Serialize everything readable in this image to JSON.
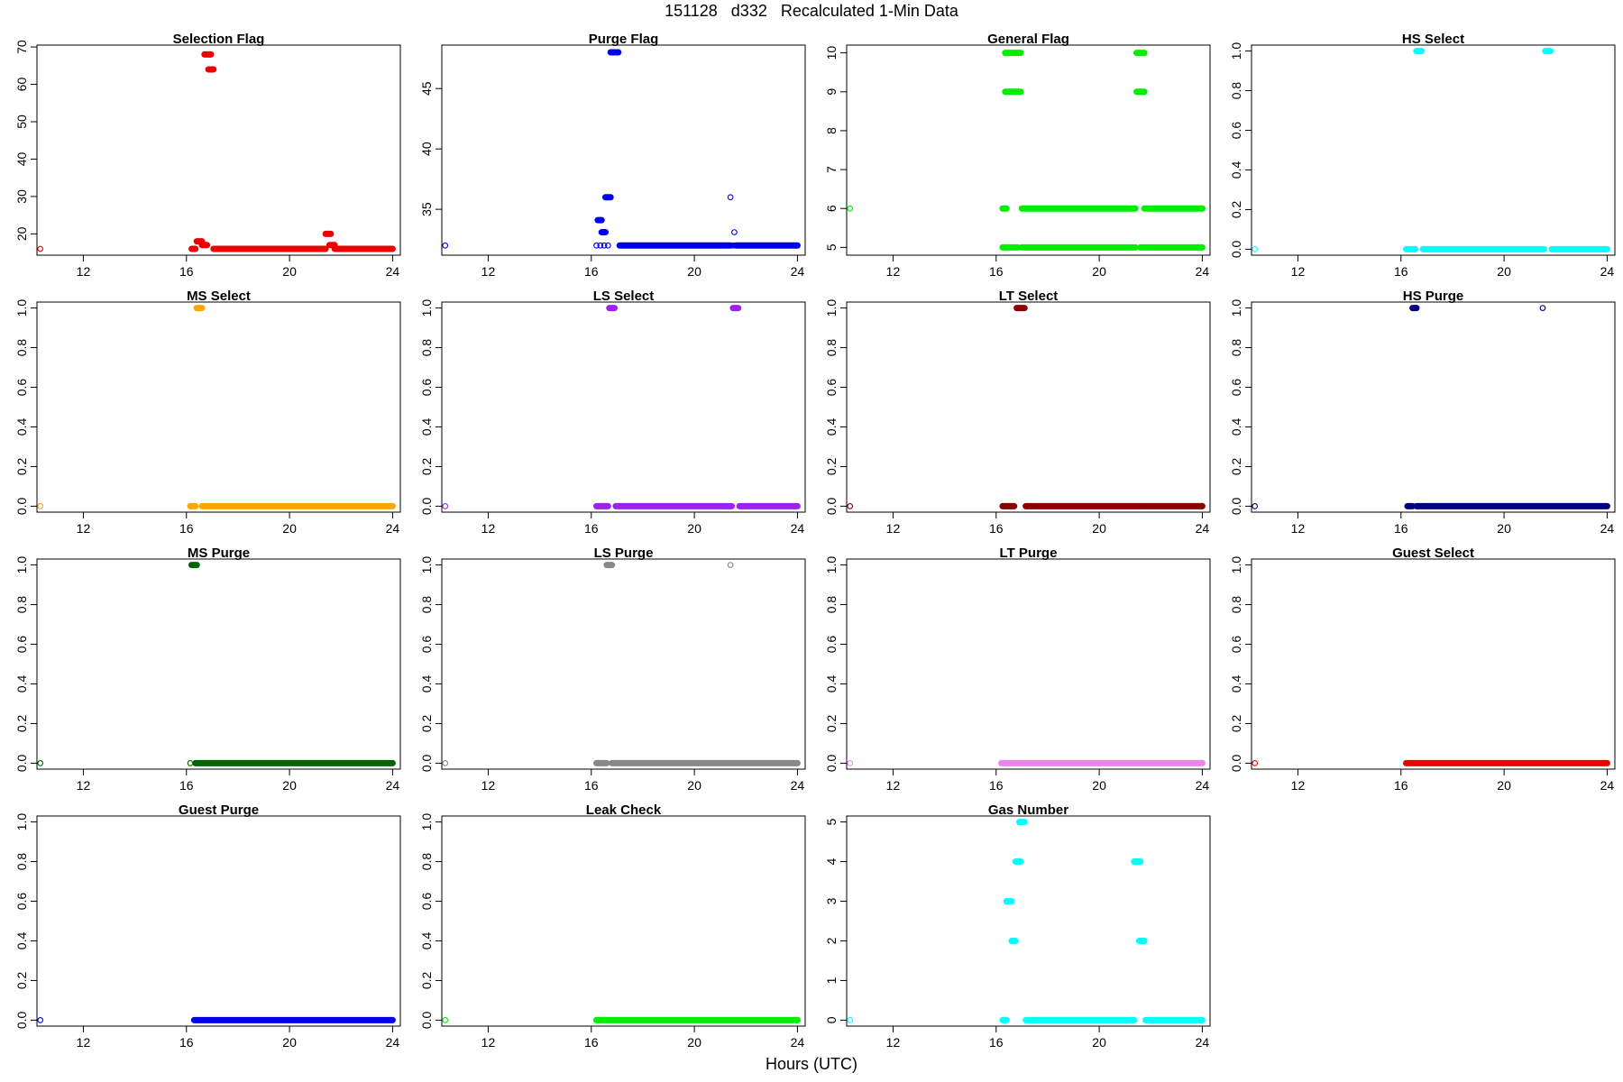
{
  "figure": {
    "title": "151128   d332   Recalculated 1-Min Data",
    "xlabel": "Hours (UTC)"
  },
  "chart_data": [
    {
      "type": "scatter",
      "title": "Selection Flag",
      "color": "#ee0000",
      "xlim": [
        10.2,
        24.3
      ],
      "ylim": [
        14.3,
        70.5
      ],
      "xticks": [
        12,
        16,
        20,
        24
      ],
      "yticks": [
        20,
        30,
        40,
        50,
        60,
        70
      ],
      "ytick_labels": [
        "20",
        "30",
        "40",
        "50",
        "60",
        "70"
      ],
      "points": [
        [
          10.33,
          16
        ]
      ],
      "segments": [
        {
          "x": [
            16.2,
            16.35
          ],
          "y": 16
        },
        {
          "x": [
            16.4,
            16.6
          ],
          "y": 18
        },
        {
          "x": [
            16.6,
            16.8
          ],
          "y": 17
        },
        {
          "x": [
            16.7,
            16.95
          ],
          "y": 68
        },
        {
          "x": [
            16.85,
            17.05
          ],
          "y": 64
        },
        {
          "x": [
            17.05,
            21.4
          ],
          "y": 16
        },
        {
          "x": [
            21.4,
            21.6
          ],
          "y": 20
        },
        {
          "x": [
            21.55,
            21.75
          ],
          "y": 17
        },
        {
          "x": [
            21.75,
            24.0
          ],
          "y": 16
        }
      ]
    },
    {
      "type": "scatter",
      "title": "Purge Flag",
      "color": "#0000ee",
      "xlim": [
        10.2,
        24.3
      ],
      "ylim": [
        31.2,
        48.6
      ],
      "xticks": [
        12,
        16,
        20,
        24
      ],
      "yticks": [
        35,
        40,
        45
      ],
      "ytick_labels": [
        "35",
        "40",
        "45"
      ],
      "points": [
        [
          10.33,
          32
        ],
        [
          16.2,
          32
        ],
        [
          16.35,
          32
        ],
        [
          16.5,
          32
        ],
        [
          16.65,
          32
        ],
        [
          21.4,
          36
        ],
        [
          21.55,
          33.1
        ],
        [
          21.5,
          32
        ]
      ],
      "segments": [
        {
          "x": [
            16.25,
            16.4
          ],
          "y": 34.1
        },
        {
          "x": [
            16.4,
            16.55
          ],
          "y": 33.1
        },
        {
          "x": [
            16.55,
            16.75
          ],
          "y": 36
        },
        {
          "x": [
            16.75,
            17.05
          ],
          "y": 48
        },
        {
          "x": [
            17.1,
            21.4
          ],
          "y": 32
        },
        {
          "x": [
            21.6,
            24.0
          ],
          "y": 32
        }
      ]
    },
    {
      "type": "scatter",
      "title": "General Flag",
      "color": "#00ee00",
      "xlim": [
        10.2,
        24.3
      ],
      "ylim": [
        4.8,
        10.2
      ],
      "xticks": [
        12,
        16,
        20,
        24
      ],
      "yticks": [
        5,
        6,
        7,
        8,
        9,
        10
      ],
      "ytick_labels": [
        "5",
        "6",
        "7",
        "8",
        "9",
        "10"
      ],
      "points": [
        [
          10.33,
          6
        ]
      ],
      "segments": [
        {
          "x": [
            16.25,
            16.4
          ],
          "y": 6
        },
        {
          "x": [
            16.25,
            16.4
          ],
          "y": 5
        },
        {
          "x": [
            16.35,
            16.95
          ],
          "y": 10
        },
        {
          "x": [
            16.35,
            16.95
          ],
          "y": 9
        },
        {
          "x": [
            16.45,
            16.85
          ],
          "y": 5
        },
        {
          "x": [
            17.0,
            21.4
          ],
          "y": 5
        },
        {
          "x": [
            17.0,
            21.4
          ],
          "y": 6
        },
        {
          "x": [
            21.45,
            21.75
          ],
          "y": 10
        },
        {
          "x": [
            21.45,
            21.75
          ],
          "y": 9
        },
        {
          "x": [
            21.6,
            24.0
          ],
          "y": 5
        },
        {
          "x": [
            21.75,
            24.0
          ],
          "y": 6
        }
      ]
    },
    {
      "type": "scatter",
      "title": "HS Select",
      "color": "#00ffff",
      "xlim": [
        10.2,
        24.3
      ],
      "ylim": [
        -0.03,
        1.03
      ],
      "xticks": [
        12,
        16,
        20,
        24
      ],
      "yticks": [
        0,
        0.2,
        0.4,
        0.6,
        0.8,
        1.0
      ],
      "ytick_labels": [
        "0.0",
        "0.2",
        "0.4",
        "0.6",
        "0.8",
        "1.0"
      ],
      "points": [
        [
          10.33,
          0
        ]
      ],
      "segments": [
        {
          "x": [
            16.6,
            16.8
          ],
          "y": 1
        },
        {
          "x": [
            21.6,
            21.8
          ],
          "y": 1
        },
        {
          "x": [
            16.2,
            16.55
          ],
          "y": 0
        },
        {
          "x": [
            16.85,
            21.55
          ],
          "y": 0
        },
        {
          "x": [
            21.85,
            24.0
          ],
          "y": 0
        }
      ]
    },
    {
      "type": "scatter",
      "title": "MS Select",
      "color": "#ffa500",
      "xlim": [
        10.2,
        24.3
      ],
      "ylim": [
        -0.03,
        1.03
      ],
      "xticks": [
        12,
        16,
        20,
        24
      ],
      "yticks": [
        0,
        0.2,
        0.4,
        0.6,
        0.8,
        1.0
      ],
      "ytick_labels": [
        "0.0",
        "0.2",
        "0.4",
        "0.6",
        "0.8",
        "1.0"
      ],
      "points": [
        [
          10.33,
          0
        ]
      ],
      "segments": [
        {
          "x": [
            16.4,
            16.6
          ],
          "y": 1
        },
        {
          "x": [
            16.15,
            16.35
          ],
          "y": 0
        },
        {
          "x": [
            16.6,
            24.0
          ],
          "y": 0
        }
      ]
    },
    {
      "type": "scatter",
      "title": "LS Select",
      "color": "#a020f0",
      "xlim": [
        10.2,
        24.3
      ],
      "ylim": [
        -0.03,
        1.03
      ],
      "xticks": [
        12,
        16,
        20,
        24
      ],
      "yticks": [
        0,
        0.2,
        0.4,
        0.6,
        0.8,
        1.0
      ],
      "ytick_labels": [
        "0.0",
        "0.2",
        "0.4",
        "0.6",
        "0.8",
        "1.0"
      ],
      "points": [
        [
          10.33,
          0
        ]
      ],
      "segments": [
        {
          "x": [
            16.7,
            16.9
          ],
          "y": 1
        },
        {
          "x": [
            21.5,
            21.7
          ],
          "y": 1
        },
        {
          "x": [
            16.2,
            16.65
          ],
          "y": 0
        },
        {
          "x": [
            16.95,
            21.45
          ],
          "y": 0
        },
        {
          "x": [
            21.75,
            24.0
          ],
          "y": 0
        }
      ]
    },
    {
      "type": "scatter",
      "title": "LT Select",
      "color": "#8b0000",
      "xlim": [
        10.2,
        24.3
      ],
      "ylim": [
        -0.03,
        1.03
      ],
      "xticks": [
        12,
        16,
        20,
        24
      ],
      "yticks": [
        0,
        0.2,
        0.4,
        0.6,
        0.8,
        1.0
      ],
      "ytick_labels": [
        "0.0",
        "0.2",
        "0.4",
        "0.6",
        "0.8",
        "1.0"
      ],
      "points": [
        [
          10.33,
          0
        ]
      ],
      "segments": [
        {
          "x": [
            16.8,
            17.1
          ],
          "y": 1
        },
        {
          "x": [
            16.25,
            16.7
          ],
          "y": 0
        },
        {
          "x": [
            17.15,
            24.0
          ],
          "y": 0
        }
      ]
    },
    {
      "type": "scatter",
      "title": "HS Purge",
      "color": "#000080",
      "xlim": [
        10.2,
        24.3
      ],
      "ylim": [
        -0.03,
        1.03
      ],
      "xticks": [
        12,
        16,
        20,
        24
      ],
      "yticks": [
        0,
        0.2,
        0.4,
        0.6,
        0.8,
        1.0
      ],
      "ytick_labels": [
        "0.0",
        "0.2",
        "0.4",
        "0.6",
        "0.8",
        "1.0"
      ],
      "points": [
        [
          10.33,
          0
        ],
        [
          21.5,
          1
        ]
      ],
      "segments": [
        {
          "x": [
            16.45,
            16.6
          ],
          "y": 1
        },
        {
          "x": [
            16.25,
            16.45
          ],
          "y": 0
        },
        {
          "x": [
            16.6,
            24.0
          ],
          "y": 0
        }
      ]
    },
    {
      "type": "scatter",
      "title": "MS Purge",
      "color": "#006400",
      "xlim": [
        10.2,
        24.3
      ],
      "ylim": [
        -0.03,
        1.03
      ],
      "xticks": [
        12,
        16,
        20,
        24
      ],
      "yticks": [
        0,
        0.2,
        0.4,
        0.6,
        0.8,
        1.0
      ],
      "ytick_labels": [
        "0.0",
        "0.2",
        "0.4",
        "0.6",
        "0.8",
        "1.0"
      ],
      "points": [
        [
          10.33,
          0
        ],
        [
          16.15,
          0
        ]
      ],
      "segments": [
        {
          "x": [
            16.2,
            16.4
          ],
          "y": 1
        },
        {
          "x": [
            16.35,
            24.0
          ],
          "y": 0
        }
      ]
    },
    {
      "type": "scatter",
      "title": "LS Purge",
      "color": "#888888",
      "xlim": [
        10.2,
        24.3
      ],
      "ylim": [
        -0.03,
        1.03
      ],
      "xticks": [
        12,
        16,
        20,
        24
      ],
      "yticks": [
        0,
        0.2,
        0.4,
        0.6,
        0.8,
        1.0
      ],
      "ytick_labels": [
        "0.0",
        "0.2",
        "0.4",
        "0.6",
        "0.8",
        "1.0"
      ],
      "points": [
        [
          10.33,
          0
        ],
        [
          21.4,
          1
        ]
      ],
      "segments": [
        {
          "x": [
            16.6,
            16.8
          ],
          "y": 1
        },
        {
          "x": [
            16.2,
            16.6
          ],
          "y": 0
        },
        {
          "x": [
            16.8,
            24.0
          ],
          "y": 0
        }
      ]
    },
    {
      "type": "scatter",
      "title": "LT Purge",
      "color": "#ee82ee",
      "xlim": [
        10.2,
        24.3
      ],
      "ylim": [
        -0.03,
        1.03
      ],
      "xticks": [
        12,
        16,
        20,
        24
      ],
      "yticks": [
        0,
        0.2,
        0.4,
        0.6,
        0.8,
        1.0
      ],
      "ytick_labels": [
        "0.0",
        "0.2",
        "0.4",
        "0.6",
        "0.8",
        "1.0"
      ],
      "points": [
        [
          10.33,
          0
        ]
      ],
      "segments": [
        {
          "x": [
            16.2,
            24.0
          ],
          "y": 0
        }
      ]
    },
    {
      "type": "scatter",
      "title": "Guest Select",
      "color": "#ee0000",
      "xlim": [
        10.2,
        24.3
      ],
      "ylim": [
        -0.03,
        1.03
      ],
      "xticks": [
        12,
        16,
        20,
        24
      ],
      "yticks": [
        0,
        0.2,
        0.4,
        0.6,
        0.8,
        1.0
      ],
      "ytick_labels": [
        "0.0",
        "0.2",
        "0.4",
        "0.6",
        "0.8",
        "1.0"
      ],
      "points": [
        [
          10.33,
          0
        ]
      ],
      "segments": [
        {
          "x": [
            16.2,
            24.0
          ],
          "y": 0
        }
      ]
    },
    {
      "type": "scatter",
      "title": "Guest Purge",
      "color": "#0000ee",
      "xlim": [
        10.2,
        24.3
      ],
      "ylim": [
        -0.03,
        1.03
      ],
      "xticks": [
        12,
        16,
        20,
        24
      ],
      "yticks": [
        0,
        0.2,
        0.4,
        0.6,
        0.8,
        1.0
      ],
      "ytick_labels": [
        "0.0",
        "0.2",
        "0.4",
        "0.6",
        "0.8",
        "1.0"
      ],
      "points": [
        [
          10.33,
          0
        ]
      ],
      "segments": [
        {
          "x": [
            16.3,
            24.0
          ],
          "y": 0
        }
      ]
    },
    {
      "type": "scatter",
      "title": "Leak Check",
      "color": "#00ee00",
      "xlim": [
        10.2,
        24.3
      ],
      "ylim": [
        -0.03,
        1.03
      ],
      "xticks": [
        12,
        16,
        20,
        24
      ],
      "yticks": [
        0,
        0.2,
        0.4,
        0.6,
        0.8,
        1.0
      ],
      "ytick_labels": [
        "0.0",
        "0.2",
        "0.4",
        "0.6",
        "0.8",
        "1.0"
      ],
      "points": [
        [
          10.33,
          0
        ]
      ],
      "segments": [
        {
          "x": [
            16.2,
            24.0
          ],
          "y": 0
        }
      ]
    },
    {
      "type": "scatter",
      "title": "Gas Number",
      "color": "#00ffff",
      "xlim": [
        10.2,
        24.3
      ],
      "ylim": [
        -0.15,
        5.15
      ],
      "xticks": [
        12,
        16,
        20,
        24
      ],
      "yticks": [
        0,
        1,
        2,
        3,
        4,
        5
      ],
      "ytick_labels": [
        "0",
        "1",
        "2",
        "3",
        "4",
        "5"
      ],
      "points": [
        [
          10.33,
          0
        ]
      ],
      "segments": [
        {
          "x": [
            16.25,
            16.4
          ],
          "y": 0
        },
        {
          "x": [
            16.4,
            16.6
          ],
          "y": 3
        },
        {
          "x": [
            16.6,
            16.75
          ],
          "y": 2
        },
        {
          "x": [
            16.75,
            16.95
          ],
          "y": 4
        },
        {
          "x": [
            16.9,
            17.1
          ],
          "y": 5
        },
        {
          "x": [
            17.15,
            21.35
          ],
          "y": 0
        },
        {
          "x": [
            21.35,
            21.6
          ],
          "y": 4
        },
        {
          "x": [
            21.55,
            21.75
          ],
          "y": 2
        },
        {
          "x": [
            21.8,
            24.0
          ],
          "y": 0
        }
      ]
    }
  ]
}
